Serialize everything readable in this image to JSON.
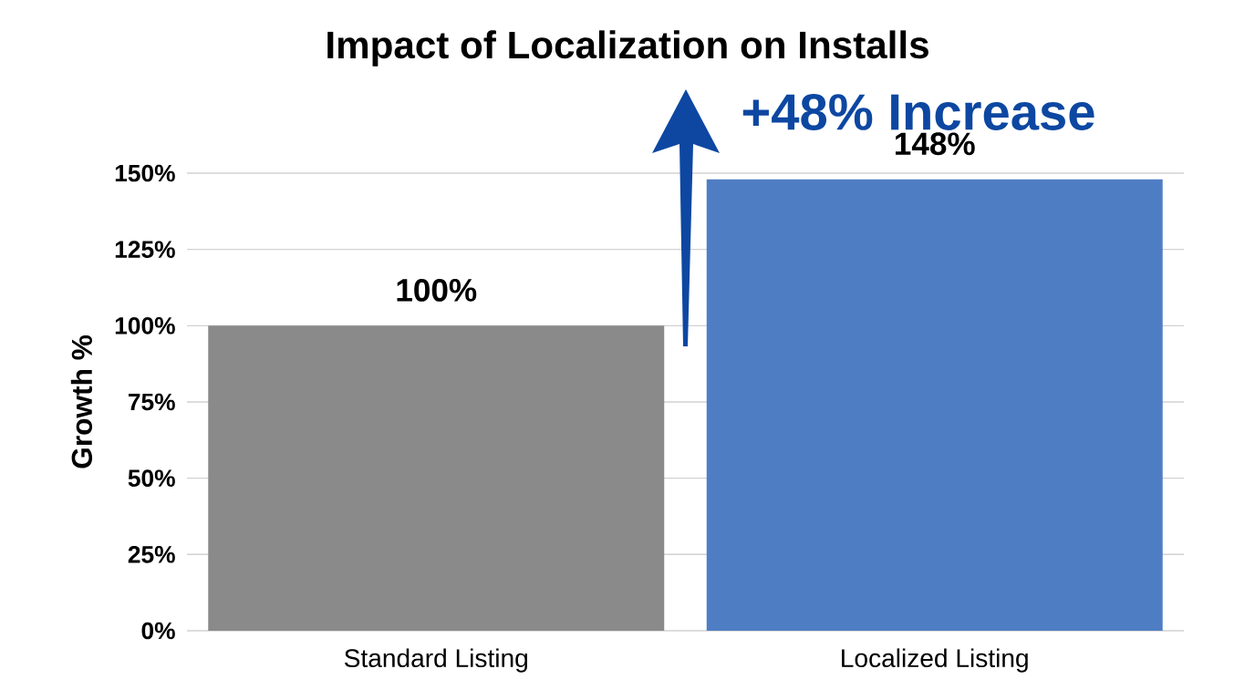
{
  "chart_data": {
    "type": "bar",
    "title": "Impact of Localization on Installs",
    "ylabel": "Growth %",
    "categories": [
      "Standard Listing",
      "Localized Listing"
    ],
    "values": [
      100,
      148
    ],
    "colors": [
      "#8a8a8a",
      "#4f7dc4"
    ],
    "value_labels": [
      "100%",
      "148%"
    ],
    "ylim": [
      0,
      150
    ],
    "yticks": [
      {
        "value": 0,
        "label": "0%"
      },
      {
        "value": 25,
        "label": "25%"
      },
      {
        "value": 50,
        "label": "50%"
      },
      {
        "value": 75,
        "label": "75%"
      },
      {
        "value": 100,
        "label": "100%"
      },
      {
        "value": 125,
        "label": "125%"
      },
      {
        "value": 150,
        "label": "150%"
      }
    ],
    "grid": "y",
    "annotations": [
      "+48% Increase"
    ]
  }
}
